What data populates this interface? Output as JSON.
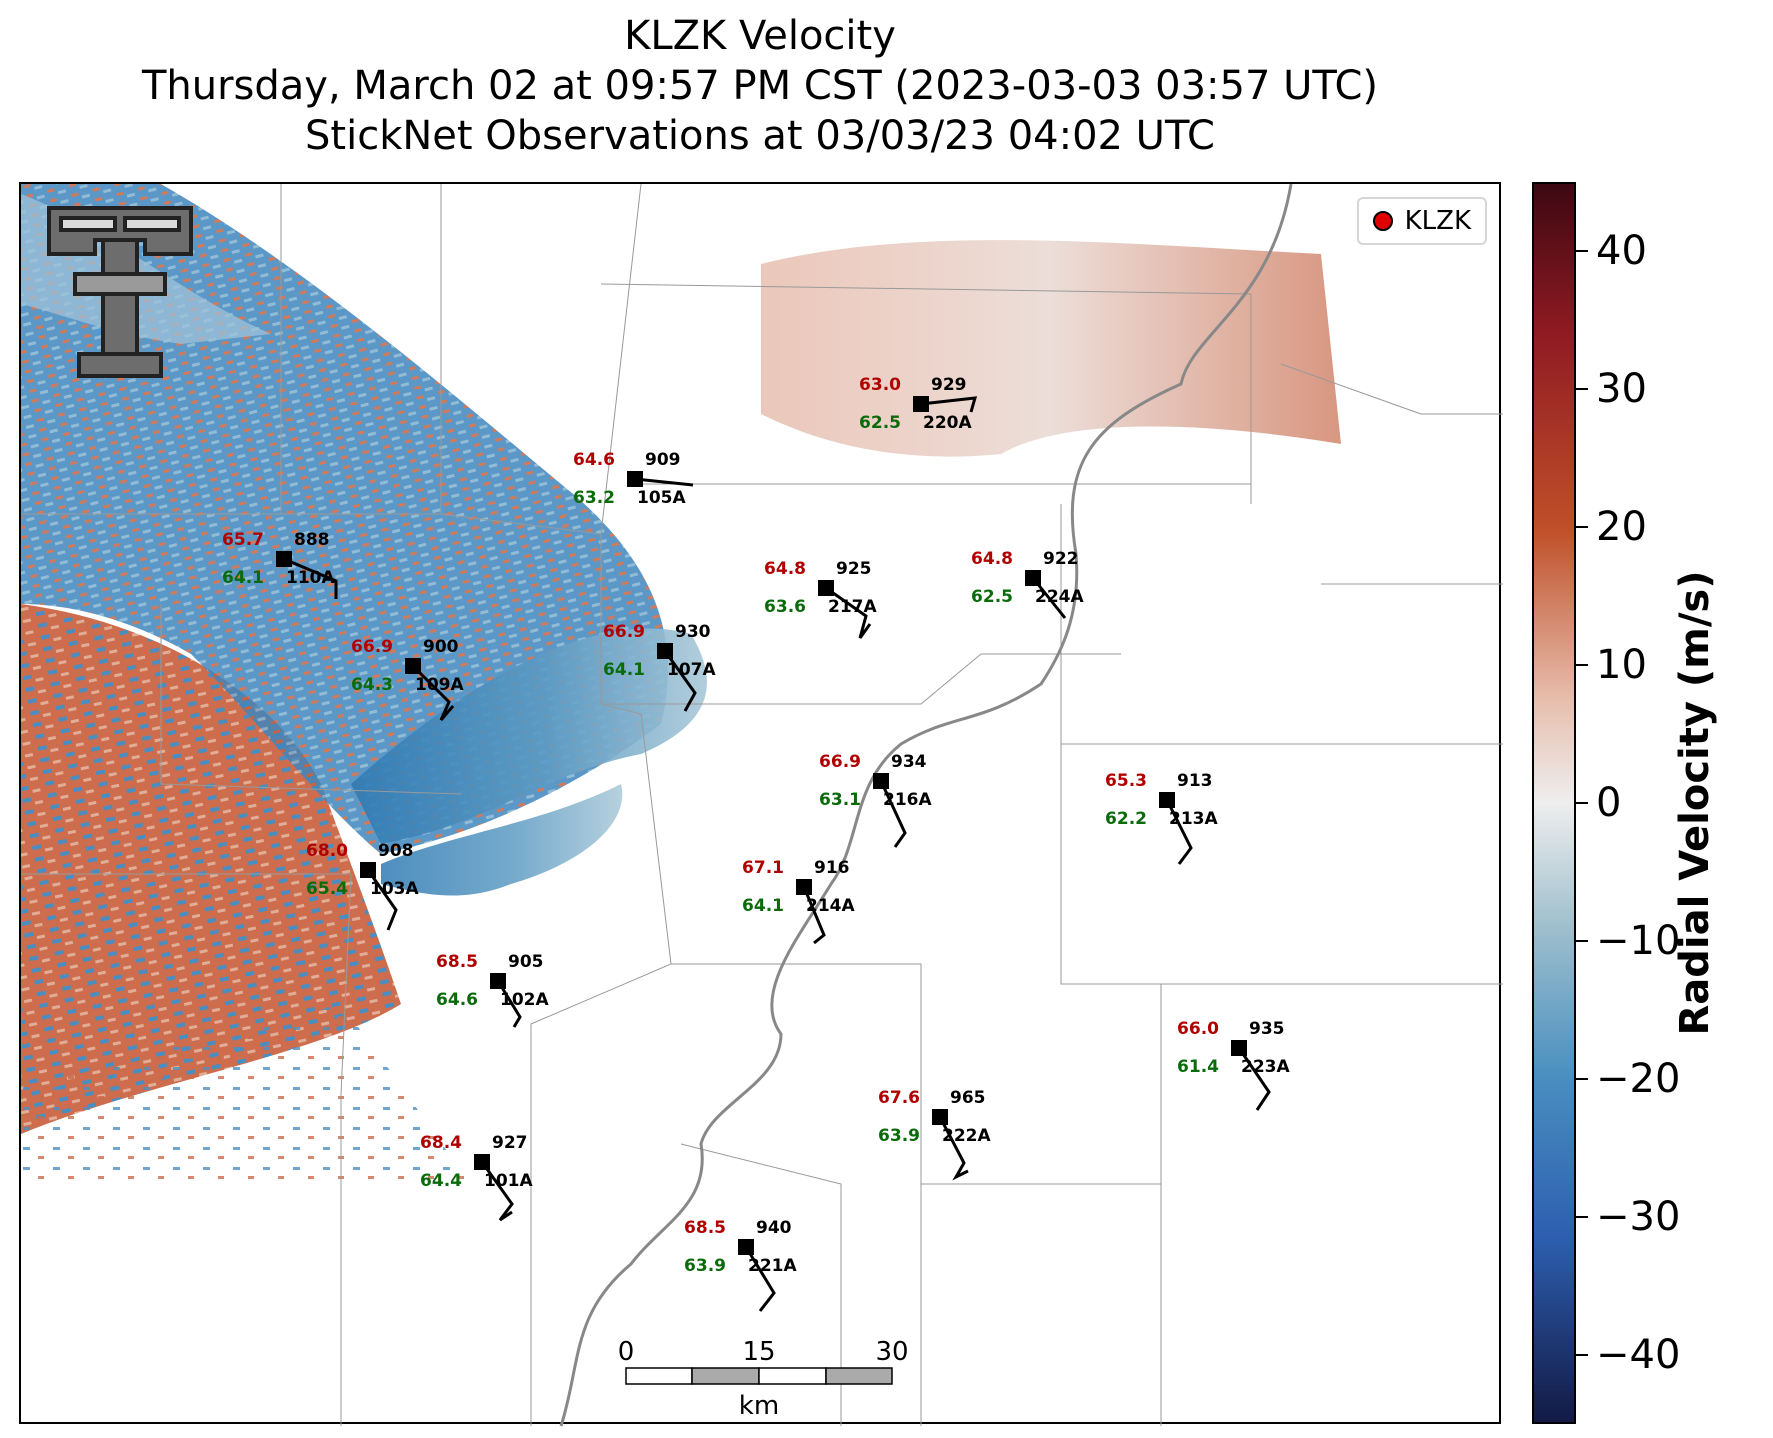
{
  "title": {
    "line1": "KLZK Velocity",
    "line2": "Thursday, March 02 at 09:57 PM CST (2023-03-03 03:57 UTC)",
    "line3": "StickNet Observations at 03/03/23 04:02 UTC"
  },
  "legend": {
    "label": "KLZK",
    "marker_color": "#e00000"
  },
  "logo": {
    "icon": "double-t-logo"
  },
  "stations": [
    {
      "id": "929",
      "probe": "220A",
      "temp": "63.0",
      "dew": "62.5"
    },
    {
      "id": "909",
      "probe": "105A",
      "temp": "64.6",
      "dew": "63.2"
    },
    {
      "id": "888",
      "probe": "110A",
      "temp": "65.7",
      "dew": "64.1"
    },
    {
      "id": "925",
      "probe": "217A",
      "temp": "64.8",
      "dew": "63.6"
    },
    {
      "id": "922",
      "probe": "224A",
      "temp": "64.8",
      "dew": "62.5"
    },
    {
      "id": "930",
      "probe": "107A",
      "temp": "66.9",
      "dew": "64.1"
    },
    {
      "id": "900",
      "probe": "109A",
      "temp": "66.9",
      "dew": "64.3"
    },
    {
      "id": "934",
      "probe": "216A",
      "temp": "66.9",
      "dew": "63.1"
    },
    {
      "id": "913",
      "probe": "213A",
      "temp": "65.3",
      "dew": "62.2"
    },
    {
      "id": "908",
      "probe": "103A",
      "temp": "68.0",
      "dew": "65.4"
    },
    {
      "id": "916",
      "probe": "214A",
      "temp": "67.1",
      "dew": "64.1"
    },
    {
      "id": "905",
      "probe": "102A",
      "temp": "68.5",
      "dew": "64.6"
    },
    {
      "id": "935",
      "probe": "223A",
      "temp": "66.0",
      "dew": "61.4"
    },
    {
      "id": "965",
      "probe": "222A",
      "temp": "67.6",
      "dew": "63.9"
    },
    {
      "id": "927",
      "probe": "101A",
      "temp": "68.4",
      "dew": "64.4"
    },
    {
      "id": "940",
      "probe": "221A",
      "temp": "68.5",
      "dew": "63.9"
    }
  ],
  "scale_bar": {
    "ticks": [
      "0",
      "15",
      "30"
    ],
    "unit": "km"
  },
  "colorbar": {
    "title": "Radial Velocity (m/s)",
    "range": [
      -45,
      45
    ],
    "ticks": [
      "40",
      "30",
      "20",
      "10",
      "0",
      "−10",
      "−20",
      "−30",
      "−40"
    ],
    "colors": {
      "high": "#3d0812",
      "warm": "#c0502a",
      "zero": "#eeeeee",
      "cool": "#4a8fc0",
      "low": "#131a45"
    }
  }
}
